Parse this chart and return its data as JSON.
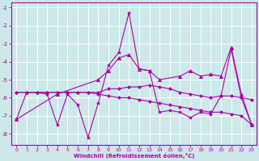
{
  "xlabel": "Windchill (Refroidissement éolien,°C)",
  "xlim": [
    -0.5,
    23.5
  ],
  "ylim": [
    -8.6,
    -0.7
  ],
  "yticks": [
    -1,
    -2,
    -3,
    -4,
    -5,
    -6,
    -7,
    -8
  ],
  "xticks": [
    0,
    1,
    2,
    3,
    4,
    5,
    6,
    7,
    8,
    9,
    10,
    11,
    12,
    13,
    14,
    15,
    16,
    17,
    18,
    19,
    20,
    21,
    22,
    23
  ],
  "bg_color": "#cce8e8",
  "grid_color": "#ffffff",
  "line_color": "#aa00aa",
  "lines": [
    {
      "x": [
        0,
        1,
        2,
        3,
        4,
        5,
        6,
        7,
        8,
        9,
        10,
        11,
        12,
        13,
        14,
        15,
        16,
        17,
        18,
        19,
        20,
        21,
        22,
        23
      ],
      "y": [
        -7.2,
        -5.7,
        -5.7,
        -5.8,
        -7.5,
        -5.8,
        -6.4,
        -8.2,
        -6.3,
        -4.2,
        -3.5,
        -1.3,
        -4.4,
        -4.5,
        -6.8,
        -6.7,
        -6.8,
        -7.1,
        -6.8,
        -6.9,
        -5.9,
        -3.3,
        -6.0,
        -7.5
      ],
      "marker": "*",
      "markersize": 3,
      "lw": 0.8
    },
    {
      "x": [
        0,
        4,
        8,
        9,
        10,
        11,
        12,
        13,
        14,
        16,
        17,
        18,
        19,
        20,
        21,
        22,
        23
      ],
      "y": [
        -7.2,
        -5.8,
        -5.0,
        -4.5,
        -3.8,
        -3.6,
        -4.4,
        -4.5,
        -5.0,
        -4.8,
        -4.5,
        -4.8,
        -4.7,
        -4.8,
        -3.2,
        -5.8,
        -7.5
      ],
      "marker": "^",
      "markersize": 3,
      "lw": 0.8
    },
    {
      "x": [
        0,
        1,
        2,
        3,
        4,
        5,
        6,
        7,
        8,
        9,
        10,
        11,
        12,
        13,
        14,
        15,
        16,
        17,
        18,
        19,
        20,
        21,
        22,
        23
      ],
      "y": [
        -5.7,
        -5.7,
        -5.7,
        -5.7,
        -5.7,
        -5.7,
        -5.7,
        -5.7,
        -5.7,
        -5.5,
        -5.5,
        -5.4,
        -5.4,
        -5.3,
        -5.4,
        -5.5,
        -5.7,
        -5.8,
        -5.9,
        -6.0,
        -5.9,
        -5.9,
        -6.0,
        -6.1
      ],
      "marker": "D",
      "markersize": 2,
      "lw": 0.8
    },
    {
      "x": [
        0,
        1,
        2,
        3,
        4,
        5,
        6,
        7,
        8,
        9,
        10,
        11,
        12,
        13,
        14,
        15,
        16,
        17,
        18,
        19,
        20,
        21,
        22,
        23
      ],
      "y": [
        -5.7,
        -5.7,
        -5.7,
        -5.7,
        -5.7,
        -5.7,
        -5.7,
        -5.7,
        -5.8,
        -5.9,
        -6.0,
        -6.0,
        -6.1,
        -6.2,
        -6.3,
        -6.4,
        -6.5,
        -6.6,
        -6.7,
        -6.8,
        -6.8,
        -6.9,
        -7.0,
        -7.5
      ],
      "marker": "D",
      "markersize": 2,
      "lw": 0.8
    }
  ]
}
